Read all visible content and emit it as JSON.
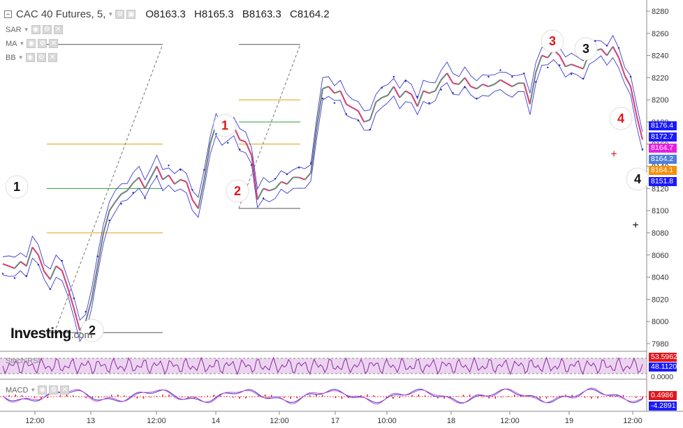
{
  "header": {
    "symbol": "CAC 40 Futures, 5,",
    "open": "O8163.3",
    "high": "H8165.3",
    "bid": "B8163.3",
    "close": "C8164.2"
  },
  "indicators": [
    {
      "name": "SAR"
    },
    {
      "name": "MA"
    },
    {
      "name": "BB"
    }
  ],
  "panes": {
    "stoch_label": "Stoch RSI",
    "macd_label": "MACD"
  },
  "logo": {
    "text": "Investing",
    "suffix": ".com"
  },
  "price_tags": [
    {
      "value": "8176.4",
      "color": "#1a1aff"
    },
    {
      "value": "8172.7",
      "color": "#1a1aff"
    },
    {
      "value": "8164.7",
      "color": "#e91ee3"
    },
    {
      "value": "8164.2",
      "color": "#4f7fd9"
    },
    {
      "value": "8164.1",
      "color": "#f5900c"
    },
    {
      "value": "8151.8",
      "color": "#1a1aff"
    }
  ],
  "stoch_tags": [
    {
      "value": "53.5962",
      "color": "#e0151b"
    },
    {
      "value": "48.1120",
      "color": "#1a1aff"
    },
    {
      "value": "0.0000",
      "color": null
    }
  ],
  "macd_tags": [
    {
      "value": "0.4986",
      "color": "#e0151b"
    },
    {
      "value": "-4.2891",
      "color": "#1a1aff"
    }
  ],
  "wave_labels": [
    {
      "text": "1",
      "color": "#111111"
    },
    {
      "text": "2",
      "color": "#111111"
    },
    {
      "text": "1",
      "color": "#e0151b"
    },
    {
      "text": "2",
      "color": "#e0151b"
    },
    {
      "text": "3",
      "color": "#e0151b"
    },
    {
      "text": "3",
      "color": "#111111"
    },
    {
      "text": "4",
      "color": "#e0151b"
    },
    {
      "text": "4",
      "color": "#111111"
    }
  ],
  "chart_data": {
    "type": "line",
    "ylabel": "",
    "ylim": [
      7970,
      8290
    ],
    "y_ticks": [
      7980,
      8000,
      8020,
      8040,
      8060,
      8080,
      8100,
      8120,
      8140,
      8160,
      8180,
      8200,
      8220,
      8240,
      8260,
      8280
    ],
    "x_ticks": [
      "12:00",
      "13",
      "12:00",
      "14",
      "12:00",
      "17",
      "10:00",
      "18",
      "12:00",
      "19",
      "12:00"
    ],
    "series": [
      {
        "values": [
          8052,
          8050,
          8048,
          8054,
          8050,
          8067,
          8060,
          8045,
          8038,
          8050,
          8046,
          8030,
          8012,
          7992,
          8000,
          8020,
          8050,
          8080,
          8100,
          8108,
          8115,
          8118,
          8125,
          8130,
          8120,
          8130,
          8140,
          8128,
          8132,
          8124,
          8128,
          8126,
          8110,
          8102,
          8128,
          8160,
          8178,
          8168,
          8170,
          8176,
          8164,
          8162,
          8150,
          8110,
          8120,
          8118,
          8120,
          8126,
          8124,
          8130,
          8130,
          8128,
          8134,
          8175,
          8210,
          8212,
          8206,
          8208,
          8196,
          8193,
          8190,
          8180,
          8182,
          8198,
          8202,
          8204,
          8212,
          8202,
          8208,
          8205,
          8194,
          8208,
          8206,
          8208,
          8218,
          8224,
          8215,
          8214,
          8220,
          8212,
          8210,
          8214,
          8212,
          8214,
          8218,
          8215,
          8212,
          8215,
          8215,
          8196,
          8225,
          8240,
          8238,
          8245,
          8240,
          8230,
          8232,
          8230,
          8228,
          8242,
          8244,
          8246,
          8240,
          8248,
          8238,
          8222,
          8212,
          8186,
          8164
        ]
      }
    ],
    "fib_levels": [
      8120,
      8080,
      8160,
      7990,
      8200,
      8180,
      8102,
      8250
    ],
    "stoch_rsi": {
      "ylim": [
        0,
        100
      ],
      "last": [
        53.5962,
        48.112
      ],
      "min_label": 0.0
    },
    "macd": {
      "last": [
        0.4986,
        -4.2891
      ]
    }
  }
}
